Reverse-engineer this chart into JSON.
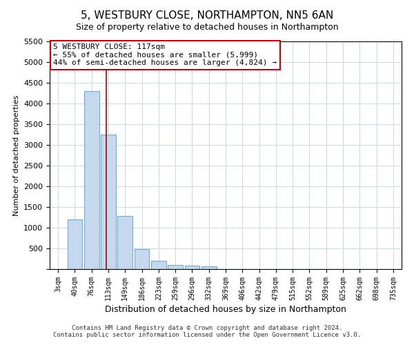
{
  "title": "5, WESTBURY CLOSE, NORTHAMPTON, NN5 6AN",
  "subtitle": "Size of property relative to detached houses in Northampton",
  "xlabel": "Distribution of detached houses by size in Northampton",
  "ylabel": "Number of detached properties",
  "categories": [
    "3sqm",
    "40sqm",
    "76sqm",
    "113sqm",
    "149sqm",
    "186sqm",
    "223sqm",
    "259sqm",
    "296sqm",
    "332sqm",
    "369sqm",
    "406sqm",
    "442sqm",
    "479sqm",
    "515sqm",
    "552sqm",
    "589sqm",
    "625sqm",
    "662sqm",
    "698sqm",
    "735sqm"
  ],
  "values": [
    0,
    1200,
    4300,
    3250,
    1280,
    490,
    200,
    100,
    80,
    60,
    0,
    0,
    0,
    0,
    0,
    0,
    0,
    0,
    0,
    0,
    0
  ],
  "bar_color": "#c5d8ee",
  "bar_edgecolor": "#6baed6",
  "vline_color": "#aa0000",
  "vline_position": 2.88,
  "annotation_text": "5 WESTBURY CLOSE: 117sqm\n← 55% of detached houses are smaller (5,999)\n44% of semi-detached houses are larger (4,824) →",
  "annotation_box_edgecolor": "#cc0000",
  "annotation_box_facecolor": "#ffffff",
  "ylim": [
    0,
    5500
  ],
  "yticks": [
    0,
    500,
    1000,
    1500,
    2000,
    2500,
    3000,
    3500,
    4000,
    4500,
    5000,
    5500
  ],
  "footer": "Contains HM Land Registry data © Crown copyright and database right 2024.\nContains public sector information licensed under the Open Government Licence v3.0.",
  "bg_color": "#ffffff",
  "grid_color": "#c8d8e8",
  "title_fontsize": 11,
  "subtitle_fontsize": 9,
  "xlabel_fontsize": 9,
  "ylabel_fontsize": 8,
  "annotation_fontsize": 8
}
